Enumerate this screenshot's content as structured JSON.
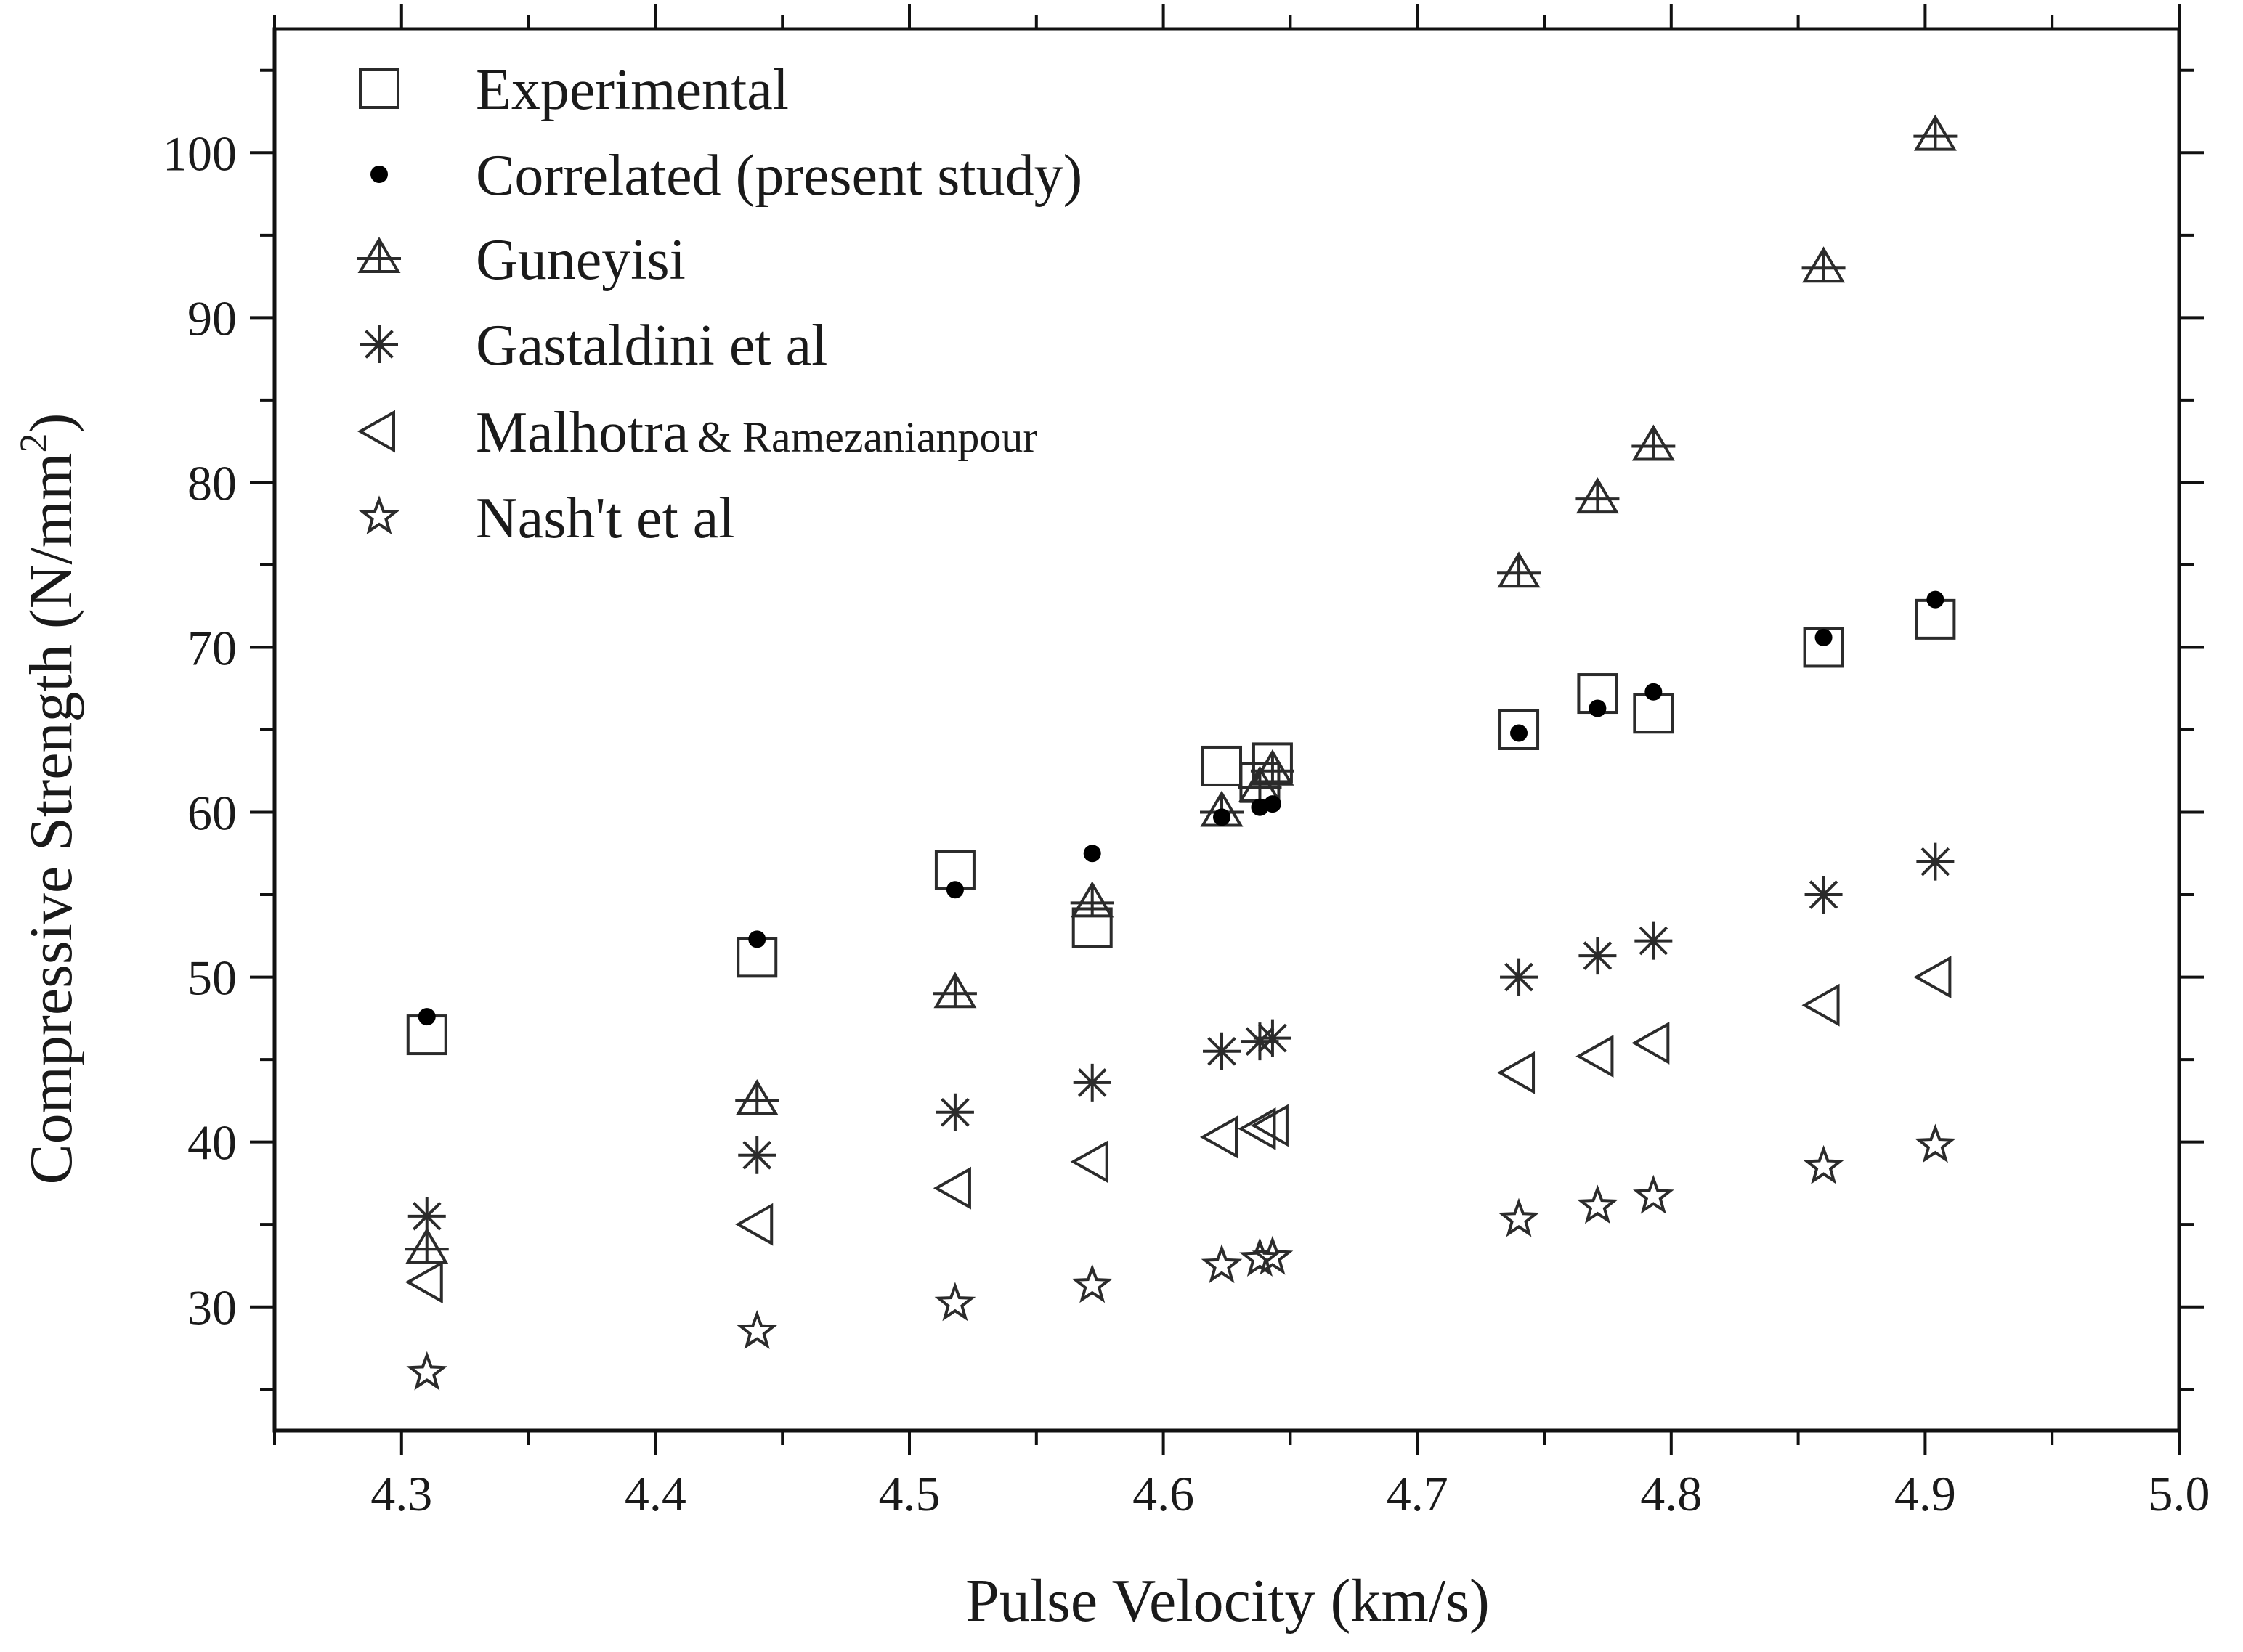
{
  "chart_data": {
    "type": "scatter",
    "title": "",
    "xlabel": "Pulse Velocity (km/s)",
    "ylabel_main": "Compressive Strength (N/mm",
    "ylabel_sup": "2",
    "ylabel_close": ")",
    "xlim": [
      4.25,
      5.0
    ],
    "ylim": [
      22.5,
      107.5
    ],
    "x_ticks": [
      "4.3",
      "4.4",
      "4.5",
      "4.6",
      "4.7",
      "4.8",
      "4.9",
      "5.0"
    ],
    "y_ticks": [
      "30",
      "40",
      "50",
      "60",
      "70",
      "80",
      "90",
      "100"
    ],
    "x": [
      4.31,
      4.44,
      4.518,
      4.572,
      4.623,
      4.638,
      4.643,
      4.74,
      4.771,
      4.793,
      4.86,
      4.904
    ],
    "legend_position": "top-left",
    "series": [
      {
        "name": "Experimental",
        "marker": "square",
        "values": [
          46.5,
          51.2,
          56.5,
          53.0,
          62.8,
          61.8,
          63.0,
          65.0,
          67.2,
          66.0,
          70.0,
          71.7
        ]
      },
      {
        "name": "Correlated (present study)",
        "marker": "dot",
        "values": [
          47.6,
          52.3,
          55.3,
          57.5,
          59.7,
          60.3,
          60.5,
          64.8,
          66.3,
          67.3,
          70.6,
          72.9
        ]
      },
      {
        "name": "Guneyisi",
        "marker": "triangle-up",
        "values": [
          33.5,
          42.5,
          49.0,
          54.5,
          60.0,
          61.5,
          62.5,
          74.5,
          79.0,
          82.2,
          93.0,
          101.0
        ]
      },
      {
        "name": "Gastaldini et al",
        "marker": "asterisk",
        "values": [
          35.5,
          39.2,
          41.8,
          43.6,
          45.5,
          46.1,
          46.3,
          50.0,
          51.3,
          52.2,
          55.0,
          57.0
        ]
      },
      {
        "name_main": "Malhotra",
        "name_small": "& Ramezanianpour",
        "marker": "triangle-left",
        "values": [
          31.5,
          35.0,
          37.2,
          38.8,
          40.3,
          40.8,
          41.0,
          44.2,
          45.2,
          46.0,
          48.3,
          50.0
        ]
      },
      {
        "name": "Nash't et al",
        "marker": "star",
        "values": [
          26.0,
          28.5,
          30.2,
          31.3,
          32.5,
          32.9,
          33.0,
          35.3,
          36.1,
          36.7,
          38.5,
          39.8
        ]
      }
    ]
  }
}
